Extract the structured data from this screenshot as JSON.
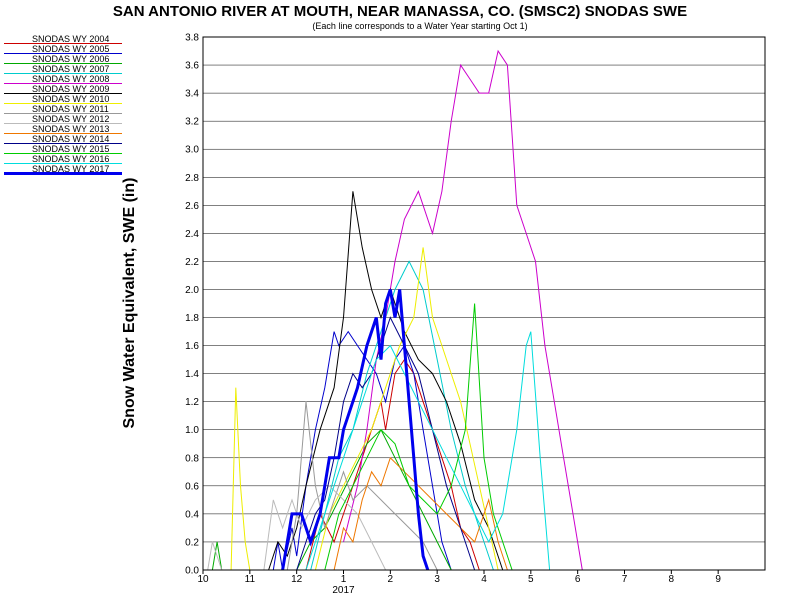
{
  "chart_data": {
    "type": "line",
    "title": "SAN ANTONIO RIVER AT MOUTH, NEAR MANASSA, CO. (SMSC2) SNODAS SWE",
    "subtitle": "(Each line corresponds to a Water Year starting Oct 1)",
    "ylabel": "Snow Water Equivalent, SWE (in)",
    "xlabel": "",
    "x_tick_labels": [
      "10",
      "11",
      "12",
      "1",
      "2",
      "3",
      "4",
      "5",
      "6",
      "7",
      "8",
      "9"
    ],
    "x_sub_label": "2017",
    "ylim": [
      0,
      3.8
    ],
    "y_ticks": [
      "0.0",
      "0.2",
      "0.4",
      "0.6",
      "0.8",
      "1.0",
      "1.2",
      "1.4",
      "1.6",
      "1.8",
      "2.0",
      "2.2",
      "2.4",
      "2.6",
      "2.8",
      "3.0",
      "3.2",
      "3.4",
      "3.6",
      "3.8"
    ],
    "grid": "horizontal",
    "legend_placement": "left",
    "series": [
      {
        "name": "SNODAS WY 2004",
        "color": "#cc0000",
        "width": 1,
        "points": [
          [
            2.2,
            0
          ],
          [
            2.5,
            0.4
          ],
          [
            2.8,
            0.2
          ],
          [
            3.0,
            0.4
          ],
          [
            3.2,
            0.6
          ],
          [
            3.4,
            0.8
          ],
          [
            3.6,
            1.0
          ],
          [
            3.8,
            1.2
          ],
          [
            3.9,
            1.0
          ],
          [
            4.1,
            1.4
          ],
          [
            4.3,
            1.5
          ],
          [
            4.5,
            1.4
          ],
          [
            4.7,
            1.2
          ],
          [
            4.9,
            1.0
          ],
          [
            5.1,
            0.8
          ],
          [
            5.3,
            0.6
          ],
          [
            5.5,
            0.3
          ],
          [
            5.7,
            0.2
          ],
          [
            5.9,
            0
          ]
        ]
      },
      {
        "name": "SNODAS WY 2005",
        "color": "#0000cc",
        "width": 1,
        "points": [
          [
            1.5,
            0
          ],
          [
            1.6,
            0.2
          ],
          [
            1.7,
            0
          ],
          [
            1.9,
            0.3
          ],
          [
            2.0,
            0.1
          ],
          [
            2.2,
            0.6
          ],
          [
            2.4,
            1.0
          ],
          [
            2.6,
            1.3
          ],
          [
            2.8,
            1.7
          ],
          [
            2.9,
            1.6
          ],
          [
            3.1,
            1.7
          ],
          [
            3.3,
            1.6
          ],
          [
            3.5,
            1.5
          ],
          [
            3.7,
            1.4
          ],
          [
            3.9,
            1.2
          ],
          [
            4.1,
            1.5
          ],
          [
            4.3,
            1.6
          ],
          [
            4.5,
            1.4
          ],
          [
            4.7,
            1.0
          ],
          [
            4.9,
            0.6
          ],
          [
            5.1,
            0.2
          ],
          [
            5.3,
            0
          ]
        ]
      },
      {
        "name": "SNODAS WY 2006",
        "color": "#00aa00",
        "width": 1,
        "points": [
          [
            0.2,
            0
          ],
          [
            0.3,
            0.2
          ],
          [
            0.4,
            0
          ],
          [
            2.0,
            0
          ],
          [
            2.3,
            0.2
          ],
          [
            2.6,
            0.3
          ],
          [
            2.9,
            0.5
          ],
          [
            3.2,
            0.7
          ],
          [
            3.5,
            0.9
          ],
          [
            3.8,
            1.0
          ],
          [
            4.1,
            0.8
          ],
          [
            4.4,
            0.6
          ],
          [
            4.7,
            0.4
          ],
          [
            5.0,
            0.2
          ],
          [
            5.3,
            0
          ]
        ]
      },
      {
        "name": "SNODAS WY 2007",
        "color": "#00cccc",
        "width": 1,
        "points": [
          [
            2.3,
            0
          ],
          [
            2.6,
            0.4
          ],
          [
            2.9,
            0.8
          ],
          [
            3.2,
            1.0
          ],
          [
            3.5,
            1.4
          ],
          [
            3.8,
            1.7
          ],
          [
            4.1,
            2.0
          ],
          [
            4.4,
            2.2
          ],
          [
            4.7,
            2.0
          ],
          [
            5.0,
            1.5
          ],
          [
            5.3,
            1.0
          ],
          [
            5.6,
            0.6
          ],
          [
            5.9,
            0.3
          ],
          [
            6.2,
            0
          ]
        ]
      },
      {
        "name": "SNODAS WY 2008",
        "color": "#cc00cc",
        "width": 1,
        "points": [
          [
            3.0,
            0.2
          ],
          [
            3.3,
            0.6
          ],
          [
            3.5,
            1.0
          ],
          [
            3.7,
            1.5
          ],
          [
            3.9,
            1.8
          ],
          [
            4.1,
            2.2
          ],
          [
            4.3,
            2.5
          ],
          [
            4.6,
            2.7
          ],
          [
            4.9,
            2.4
          ],
          [
            5.1,
            2.7
          ],
          [
            5.3,
            3.2
          ],
          [
            5.5,
            3.6
          ],
          [
            5.7,
            3.5
          ],
          [
            5.9,
            3.4
          ],
          [
            6.1,
            3.4
          ],
          [
            6.3,
            3.7
          ],
          [
            6.5,
            3.6
          ],
          [
            6.7,
            2.6
          ],
          [
            6.9,
            2.4
          ],
          [
            7.1,
            2.2
          ],
          [
            7.3,
            1.6
          ],
          [
            7.5,
            1.2
          ],
          [
            7.7,
            0.8
          ],
          [
            7.9,
            0.4
          ],
          [
            8.1,
            0
          ]
        ]
      },
      {
        "name": "SNODAS WY 2009",
        "color": "#000000",
        "width": 1,
        "points": [
          [
            1.4,
            0
          ],
          [
            1.6,
            0.2
          ],
          [
            1.8,
            0.1
          ],
          [
            2.0,
            0.3
          ],
          [
            2.2,
            0.6
          ],
          [
            2.5,
            1.0
          ],
          [
            2.8,
            1.3
          ],
          [
            3.0,
            1.8
          ],
          [
            3.2,
            2.7
          ],
          [
            3.4,
            2.3
          ],
          [
            3.6,
            2.0
          ],
          [
            3.8,
            1.8
          ],
          [
            4.0,
            2.0
          ],
          [
            4.3,
            1.7
          ],
          [
            4.6,
            1.5
          ],
          [
            4.9,
            1.4
          ],
          [
            5.2,
            1.2
          ],
          [
            5.5,
            0.9
          ],
          [
            5.8,
            0.5
          ],
          [
            6.1,
            0.3
          ],
          [
            6.4,
            0
          ]
        ]
      },
      {
        "name": "SNODAS WY 2010",
        "color": "#eeee00",
        "width": 1,
        "points": [
          [
            0.6,
            0
          ],
          [
            0.7,
            1.3
          ],
          [
            0.8,
            0.6
          ],
          [
            0.9,
            0.2
          ],
          [
            1.0,
            0
          ],
          [
            2.4,
            0
          ],
          [
            2.7,
            0.4
          ],
          [
            3.0,
            0.6
          ],
          [
            3.3,
            0.8
          ],
          [
            3.6,
            1.0
          ],
          [
            3.9,
            1.3
          ],
          [
            4.2,
            1.6
          ],
          [
            4.5,
            1.8
          ],
          [
            4.7,
            2.3
          ],
          [
            4.9,
            1.8
          ],
          [
            5.1,
            1.6
          ],
          [
            5.3,
            1.4
          ],
          [
            5.5,
            1.2
          ],
          [
            5.7,
            0.9
          ],
          [
            5.9,
            0.6
          ],
          [
            6.1,
            0.3
          ],
          [
            6.3,
            0
          ]
        ]
      },
      {
        "name": "SNODAS WY 2011",
        "color": "#999999",
        "width": 1,
        "points": [
          [
            1.8,
            0
          ],
          [
            2.0,
            0.4
          ],
          [
            2.2,
            1.2
          ],
          [
            2.4,
            0.6
          ],
          [
            2.6,
            0.3
          ],
          [
            2.8,
            0.5
          ],
          [
            3.0,
            0.7
          ],
          [
            3.2,
            0.5
          ],
          [
            3.5,
            0.6
          ],
          [
            3.8,
            0.5
          ],
          [
            4.1,
            0.4
          ],
          [
            4.4,
            0.3
          ],
          [
            4.7,
            0.2
          ],
          [
            5.0,
            0
          ]
        ]
      },
      {
        "name": "SNODAS WY 2012",
        "color": "#bbbbbb",
        "width": 1,
        "points": [
          [
            0.1,
            0
          ],
          [
            0.2,
            0.2
          ],
          [
            0.4,
            0
          ],
          [
            1.3,
            0
          ],
          [
            1.5,
            0.5
          ],
          [
            1.7,
            0.3
          ],
          [
            1.9,
            0.5
          ],
          [
            2.1,
            0.3
          ],
          [
            2.4,
            0.5
          ],
          [
            2.7,
            0.6
          ],
          [
            3.0,
            0.5
          ],
          [
            3.3,
            0.4
          ],
          [
            3.6,
            0.2
          ],
          [
            3.9,
            0
          ]
        ]
      },
      {
        "name": "SNODAS WY 2013",
        "color": "#ee7700",
        "width": 1,
        "points": [
          [
            2.8,
            0
          ],
          [
            3.0,
            0.3
          ],
          [
            3.2,
            0.2
          ],
          [
            3.4,
            0.5
          ],
          [
            3.6,
            0.7
          ],
          [
            3.8,
            0.6
          ],
          [
            4.0,
            0.8
          ],
          [
            4.3,
            0.7
          ],
          [
            4.6,
            0.6
          ],
          [
            4.9,
            0.5
          ],
          [
            5.2,
            0.4
          ],
          [
            5.5,
            0.3
          ],
          [
            5.8,
            0.2
          ],
          [
            6.1,
            0.5
          ],
          [
            6.3,
            0.2
          ],
          [
            6.5,
            0
          ]
        ]
      },
      {
        "name": "SNODAS WY 2014",
        "color": "#000088",
        "width": 1,
        "points": [
          [
            2.0,
            0
          ],
          [
            2.2,
            0.2
          ],
          [
            2.4,
            0.4
          ],
          [
            2.6,
            0.5
          ],
          [
            2.8,
            0.8
          ],
          [
            3.0,
            1.2
          ],
          [
            3.2,
            1.4
          ],
          [
            3.4,
            1.3
          ],
          [
            3.6,
            1.4
          ],
          [
            3.8,
            1.6
          ],
          [
            4.0,
            1.8
          ],
          [
            4.3,
            1.6
          ],
          [
            4.6,
            1.4
          ],
          [
            4.9,
            1.0
          ],
          [
            5.2,
            0.6
          ],
          [
            5.5,
            0.3
          ],
          [
            5.8,
            0
          ]
        ]
      },
      {
        "name": "SNODAS WY 2015",
        "color": "#00cc00",
        "width": 1,
        "points": [
          [
            2.6,
            0
          ],
          [
            2.9,
            0.4
          ],
          [
            3.2,
            0.6
          ],
          [
            3.5,
            0.8
          ],
          [
            3.8,
            1.0
          ],
          [
            4.1,
            0.9
          ],
          [
            4.4,
            0.6
          ],
          [
            4.7,
            0.5
          ],
          [
            5.0,
            0.4
          ],
          [
            5.3,
            0.6
          ],
          [
            5.6,
            1.0
          ],
          [
            5.8,
            1.9
          ],
          [
            6.0,
            0.8
          ],
          [
            6.2,
            0.4
          ],
          [
            6.4,
            0.2
          ],
          [
            6.6,
            0
          ]
        ]
      },
      {
        "name": "SNODAS WY 2016",
        "color": "#00dddd",
        "width": 1,
        "points": [
          [
            2.2,
            0
          ],
          [
            2.5,
            0.3
          ],
          [
            2.8,
            0.6
          ],
          [
            3.1,
            0.9
          ],
          [
            3.4,
            1.2
          ],
          [
            3.7,
            1.5
          ],
          [
            4.0,
            1.6
          ],
          [
            4.3,
            1.4
          ],
          [
            4.6,
            1.2
          ],
          [
            4.9,
            1.0
          ],
          [
            5.2,
            0.8
          ],
          [
            5.5,
            0.6
          ],
          [
            5.8,
            0.4
          ],
          [
            6.1,
            0.2
          ],
          [
            6.4,
            0.4
          ],
          [
            6.7,
            1.0
          ],
          [
            6.9,
            1.6
          ],
          [
            7.0,
            1.7
          ],
          [
            7.2,
            0.8
          ],
          [
            7.4,
            0
          ]
        ]
      },
      {
        "name": "SNODAS WY 2017",
        "color": "#0000ee",
        "width": 3,
        "points": [
          [
            1.7,
            0
          ],
          [
            1.8,
            0.2
          ],
          [
            1.9,
            0.4
          ],
          [
            2.1,
            0.4
          ],
          [
            2.3,
            0.2
          ],
          [
            2.4,
            0.3
          ],
          [
            2.5,
            0.4
          ],
          [
            2.6,
            0.6
          ],
          [
            2.7,
            0.8
          ],
          [
            2.9,
            0.8
          ],
          [
            3.0,
            1.0
          ],
          [
            3.1,
            1.1
          ],
          [
            3.3,
            1.3
          ],
          [
            3.5,
            1.6
          ],
          [
            3.7,
            1.8
          ],
          [
            3.8,
            1.5
          ],
          [
            3.9,
            1.9
          ],
          [
            4.0,
            2.0
          ],
          [
            4.1,
            1.8
          ],
          [
            4.2,
            2.0
          ],
          [
            4.3,
            1.6
          ],
          [
            4.4,
            1.2
          ],
          [
            4.5,
            0.8
          ],
          [
            4.6,
            0.4
          ],
          [
            4.7,
            0.1
          ],
          [
            4.8,
            0
          ]
        ]
      }
    ]
  }
}
